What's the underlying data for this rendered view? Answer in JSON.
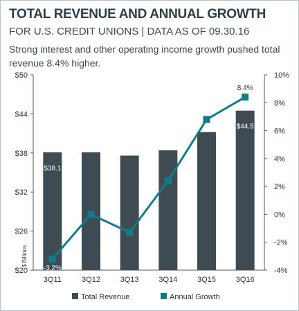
{
  "title": "TOTAL REVENUE AND ANNUAL GROWTH",
  "subtitle": "FOR U.S. CREDIT UNIONS | DATA AS OF 09.30.16",
  "description": "Strong interest and other operating income growth pushed total revenue 8.4% higher.",
  "colors": {
    "bar": "#3f4b53",
    "line": "#0f7c89",
    "grid": "#e2e2e2",
    "axis": "#555555"
  },
  "chart_data": {
    "type": "bar+line",
    "categories": [
      "3Q11",
      "3Q12",
      "3Q13",
      "3Q14",
      "3Q15",
      "3Q16"
    ],
    "ylabel": "$ Billions",
    "y_left_ticks": [
      "$20",
      "$26",
      "$32",
      "$38",
      "$44",
      "$50"
    ],
    "y_left_range": [
      20,
      50
    ],
    "y_right_ticks": [
      "-4%",
      "-2%",
      "0%",
      "2%",
      "4%",
      "6%",
      "8%",
      "10%"
    ],
    "y_right_range": [
      -4,
      10
    ],
    "series": [
      {
        "name": "Total Revenue",
        "kind": "bar",
        "axis": "left",
        "values": [
          38.1,
          38.1,
          37.6,
          38.4,
          41.2,
          44.5
        ]
      },
      {
        "name": "Annual Growth",
        "kind": "line",
        "axis": "right",
        "values": [
          -3.2,
          0.0,
          -1.3,
          2.4,
          6.8,
          8.4
        ]
      }
    ],
    "data_labels": [
      {
        "series": "Total Revenue",
        "index": 0,
        "text": "$38.1"
      },
      {
        "series": "Total Revenue",
        "index": 5,
        "text": "$44.5"
      },
      {
        "series": "Annual Growth",
        "index": 0,
        "text": "-3.2%"
      },
      {
        "series": "Annual Growth",
        "index": 5,
        "text": "8.4%"
      }
    ],
    "legend_position": "bottom"
  }
}
